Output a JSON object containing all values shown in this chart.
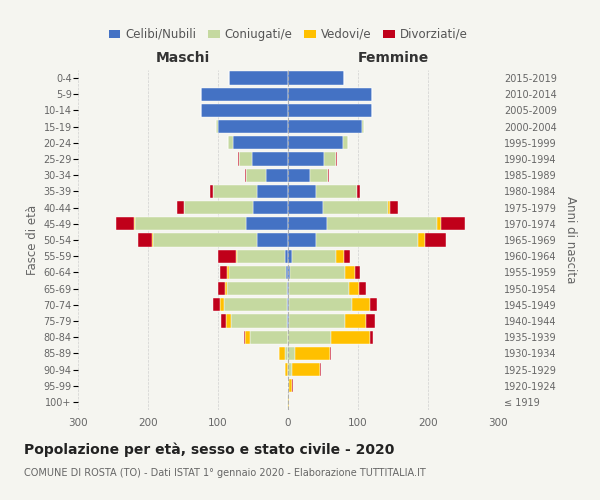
{
  "age_groups": [
    "100+",
    "95-99",
    "90-94",
    "85-89",
    "80-84",
    "75-79",
    "70-74",
    "65-69",
    "60-64",
    "55-59",
    "50-54",
    "45-49",
    "40-44",
    "35-39",
    "30-34",
    "25-29",
    "20-24",
    "15-19",
    "10-14",
    "5-9",
    "0-4"
  ],
  "birth_years": [
    "≤ 1919",
    "1920-1924",
    "1925-1929",
    "1930-1934",
    "1935-1939",
    "1940-1944",
    "1945-1949",
    "1950-1954",
    "1955-1959",
    "1960-1964",
    "1965-1969",
    "1970-1974",
    "1975-1979",
    "1980-1984",
    "1985-1989",
    "1990-1994",
    "1995-1999",
    "2000-2004",
    "2005-2009",
    "2010-2014",
    "2015-2019"
  ],
  "maschi": {
    "celibi": [
      0,
      0,
      0,
      0,
      0,
      2,
      2,
      2,
      3,
      5,
      45,
      60,
      50,
      45,
      32,
      52,
      78,
      100,
      125,
      125,
      85
    ],
    "coniugati": [
      1,
      0,
      0,
      5,
      55,
      80,
      90,
      85,
      82,
      68,
      148,
      158,
      98,
      62,
      28,
      18,
      8,
      3,
      0,
      0,
      0
    ],
    "vedovi": [
      0,
      0,
      5,
      8,
      6,
      6,
      5,
      3,
      2,
      2,
      2,
      2,
      0,
      0,
      0,
      0,
      0,
      0,
      0,
      0,
      0
    ],
    "divorziati": [
      0,
      0,
      0,
      0,
      2,
      8,
      10,
      10,
      10,
      25,
      20,
      25,
      10,
      5,
      2,
      2,
      0,
      0,
      0,
      0,
      0
    ]
  },
  "femmine": {
    "nubili": [
      0,
      0,
      0,
      0,
      0,
      2,
      2,
      2,
      3,
      5,
      40,
      55,
      50,
      40,
      32,
      52,
      78,
      105,
      120,
      120,
      80
    ],
    "coniugate": [
      0,
      2,
      5,
      10,
      62,
      80,
      90,
      85,
      78,
      63,
      145,
      158,
      93,
      58,
      25,
      16,
      8,
      3,
      0,
      0,
      0
    ],
    "vedove": [
      1,
      3,
      40,
      50,
      55,
      30,
      25,
      15,
      14,
      12,
      10,
      5,
      2,
      0,
      0,
      0,
      0,
      0,
      0,
      0,
      0
    ],
    "divorziate": [
      0,
      2,
      2,
      2,
      5,
      12,
      10,
      10,
      8,
      8,
      30,
      35,
      12,
      5,
      2,
      2,
      0,
      0,
      0,
      0,
      0
    ]
  },
  "colors": {
    "celibi": "#4472c4",
    "coniugati": "#c5d9a0",
    "vedovi": "#ffc000",
    "divorziati": "#c0001a"
  },
  "xlim": 300,
  "title": "Popolazione per età, sesso e stato civile - 2020",
  "subtitle": "COMUNE DI ROSTA (TO) - Dati ISTAT 1° gennaio 2020 - Elaborazione TUTTITALIA.IT",
  "ylabel_left": "Fasce di età",
  "ylabel_right": "Anni di nascita",
  "xlabel_maschi": "Maschi",
  "xlabel_femmine": "Femmine",
  "legend_labels": [
    "Celibi/Nubili",
    "Coniugati/e",
    "Vedovi/e",
    "Divorziati/e"
  ],
  "background_color": "#f5f5f0"
}
